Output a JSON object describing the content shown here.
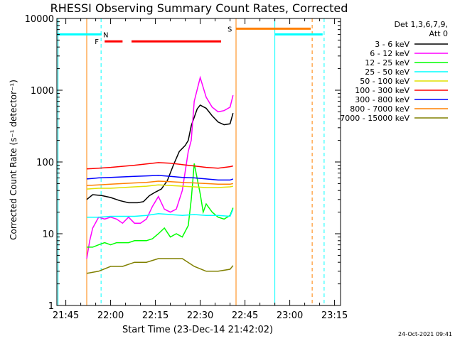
{
  "chart_data": {
    "type": "line",
    "title": "RHESSI Observing Summary Count Rates, Corrected",
    "xlabel": "Start Time (23-Dec-14 21:42:02)",
    "ylabel": "Corrected Count Rate (s⁻¹ detector⁻¹)",
    "yscale": "log",
    "ylim": [
      1,
      10000
    ],
    "xlim_min_after_start": [
      0,
      95
    ],
    "x_ticks": [
      {
        "label": "21:45",
        "t": 3
      },
      {
        "label": "22:00",
        "t": 18
      },
      {
        "label": "22:15",
        "t": 33
      },
      {
        "label": "22:30",
        "t": 48
      },
      {
        "label": "22:45",
        "t": 63
      },
      {
        "label": "23:00",
        "t": 78
      },
      {
        "label": "23:15",
        "t": 93
      }
    ],
    "y_ticks": [
      {
        "label": "1",
        "v": 1
      },
      {
        "label": "10",
        "v": 10
      },
      {
        "label": "100",
        "v": 100
      },
      {
        "label": "1000",
        "v": 1000
      },
      {
        "label": "10000",
        "v": 10000
      }
    ],
    "legend_header": [
      "Det 1,3,6,7,9,",
      "Att 0"
    ],
    "legend_position": "right",
    "series": [
      {
        "name": "3 - 6 keV",
        "color": "#000000",
        "x": [
          10,
          12,
          15,
          18,
          21,
          24,
          27,
          29,
          31,
          33,
          35,
          37,
          39,
          41,
          43,
          44,
          45,
          47,
          48,
          50,
          52,
          54,
          56,
          58,
          59
        ],
        "y": [
          30,
          35,
          34,
          32,
          29,
          27,
          27,
          28,
          34,
          38,
          42,
          55,
          90,
          140,
          170,
          200,
          320,
          550,
          620,
          560,
          440,
          360,
          330,
          340,
          480
        ]
      },
      {
        "name": "6 - 12 keV",
        "color": "#ff00ff",
        "x": [
          10,
          11,
          12,
          14,
          16,
          18,
          20,
          22,
          24,
          26,
          28,
          30,
          32,
          34,
          36,
          38,
          40,
          42,
          44,
          45,
          46,
          48,
          50,
          52,
          54,
          56,
          58,
          59
        ],
        "y": [
          4.5,
          8,
          12,
          17,
          16,
          17,
          16,
          14,
          17,
          14,
          14,
          16,
          24,
          33,
          22,
          20,
          22,
          40,
          140,
          200,
          700,
          1500,
          800,
          580,
          500,
          520,
          580,
          850
        ]
      },
      {
        "name": "12 - 25 keV",
        "color": "#00ff00",
        "x": [
          10,
          12,
          14,
          16,
          18,
          20,
          22,
          24,
          26,
          28,
          30,
          32,
          34,
          36,
          38,
          40,
          42,
          44,
          45,
          46,
          48,
          49,
          50,
          52,
          54,
          56,
          58,
          59
        ],
        "y": [
          6.5,
          6.5,
          7,
          7.5,
          7,
          7.5,
          7.5,
          7.5,
          8,
          8,
          8,
          8.5,
          10,
          12,
          9,
          10,
          9,
          13,
          30,
          95,
          36,
          20,
          26,
          20,
          17,
          16,
          18,
          23
        ]
      },
      {
        "name": "25 - 50 keV",
        "color": "#00ffff",
        "x": [
          10,
          14,
          18,
          22,
          26,
          30,
          34,
          38,
          42,
          46,
          50,
          54,
          58,
          59
        ],
        "y": [
          17,
          17,
          17.5,
          17.5,
          17.5,
          18,
          19,
          18.5,
          18,
          18.5,
          18,
          18,
          17.5,
          22
        ]
      },
      {
        "name": "50 - 100 keV",
        "color": "#e0e000",
        "x": [
          10,
          14,
          18,
          22,
          26,
          30,
          34,
          38,
          42,
          46,
          50,
          54,
          58,
          59
        ],
        "y": [
          42,
          43,
          43,
          44,
          45,
          46,
          48,
          47,
          46,
          45,
          44,
          44,
          45,
          46
        ]
      },
      {
        "name": "100 - 300 keV",
        "color": "#ff0000",
        "x": [
          10,
          14,
          18,
          22,
          26,
          30,
          34,
          38,
          42,
          46,
          50,
          54,
          58,
          59
        ],
        "y": [
          80,
          82,
          84,
          87,
          90,
          94,
          98,
          96,
          92,
          88,
          84,
          82,
          86,
          88
        ]
      },
      {
        "name": "300 - 800 keV",
        "color": "#0000ff",
        "x": [
          10,
          14,
          18,
          22,
          26,
          30,
          34,
          38,
          42,
          46,
          50,
          54,
          58,
          59
        ],
        "y": [
          58,
          60,
          61,
          62,
          63,
          64,
          65,
          63,
          61,
          60,
          58,
          56,
          56,
          58
        ]
      },
      {
        "name": "800 - 7000 keV",
        "color": "#ff8000",
        "x": [
          10,
          14,
          18,
          22,
          26,
          30,
          34,
          38,
          42,
          46,
          50,
          54,
          58,
          59
        ],
        "y": [
          47,
          48,
          49,
          50,
          51,
          52,
          54,
          53,
          52,
          51,
          50,
          49,
          49,
          50
        ]
      },
      {
        "name": "7000 - 15000 keV",
        "color": "#808000",
        "x": [
          10,
          14,
          18,
          22,
          26,
          30,
          34,
          38,
          42,
          46,
          50,
          54,
          58,
          59
        ],
        "y": [
          2.8,
          3.0,
          3.5,
          3.5,
          4.0,
          4.0,
          4.5,
          4.5,
          4.5,
          3.5,
          3.0,
          3.0,
          3.2,
          3.6
        ]
      }
    ],
    "annotations": {
      "N": {
        "label": "N",
        "color": "#00ffff"
      },
      "F": {
        "label": "F",
        "color": "#ff0000"
      },
      "S": {
        "label": "S",
        "color": "#ff8000"
      }
    },
    "segments": [
      {
        "kind": "night",
        "color": "#00ffff",
        "t0": 0,
        "t1": 15,
        "y": 6000
      },
      {
        "kind": "night",
        "color": "#00ffff",
        "t0": 73,
        "t1": 89,
        "y": 6000
      },
      {
        "kind": "flare",
        "color": "#ff0000",
        "t0": 16,
        "t1": 22,
        "y": 4800
      },
      {
        "kind": "flare",
        "color": "#ff0000",
        "t0": 25,
        "t1": 55,
        "y": 4800
      },
      {
        "kind": "saa",
        "color": "#ff8000",
        "t0": 60,
        "t1": 85,
        "y": 7200
      }
    ],
    "vlines": [
      {
        "t": 0.4,
        "color": "#00ffff",
        "style": "solid"
      },
      {
        "t": 14.8,
        "color": "#00ffff",
        "style": "dashed"
      },
      {
        "t": 10,
        "color": "#ff8000",
        "style": "solid"
      },
      {
        "t": 60,
        "color": "#ff8000",
        "style": "solid"
      },
      {
        "t": 73,
        "color": "#00ffff",
        "style": "solid"
      },
      {
        "t": 85.5,
        "color": "#ff8000",
        "style": "dashed"
      },
      {
        "t": 89.5,
        "color": "#00ffff",
        "style": "dashed"
      }
    ],
    "footer_date": "24-Oct-2021 09:41"
  }
}
